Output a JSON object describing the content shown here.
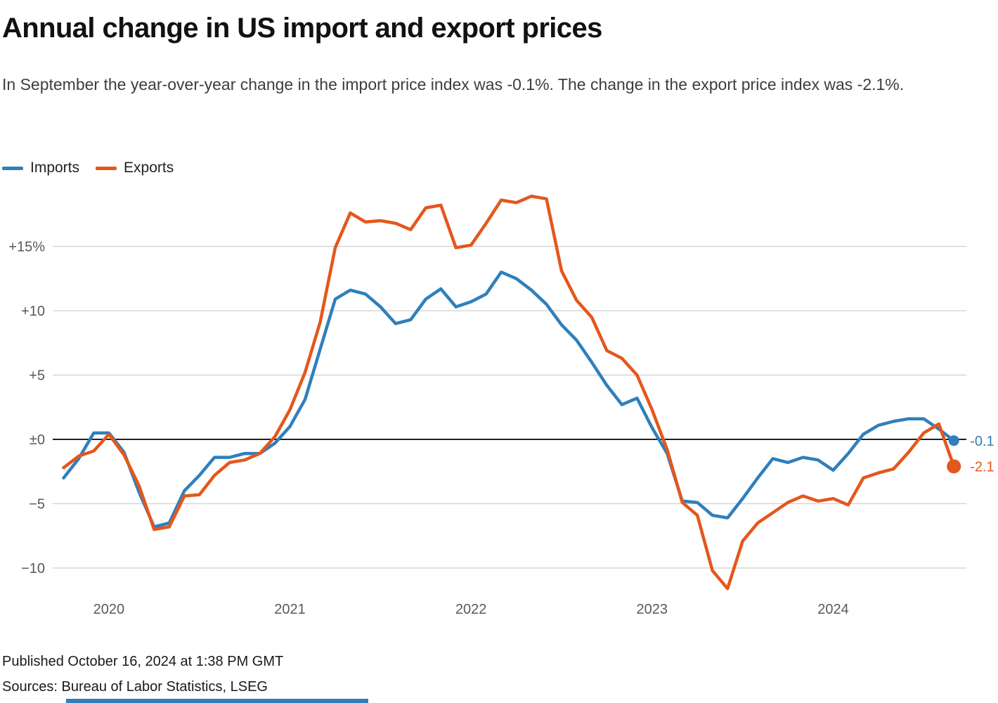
{
  "chart_data": {
    "type": "line",
    "title": "Annual change in US import and export prices",
    "subtitle": "In September the year-over-year change in the import price index was -0.1%. The change in the export price index was -2.1%.",
    "x": [
      "2019-10",
      "2019-11",
      "2019-12",
      "2020-01",
      "2020-02",
      "2020-03",
      "2020-04",
      "2020-05",
      "2020-06",
      "2020-07",
      "2020-08",
      "2020-09",
      "2020-10",
      "2020-11",
      "2020-12",
      "2021-01",
      "2021-02",
      "2021-03",
      "2021-04",
      "2021-05",
      "2021-06",
      "2021-07",
      "2021-08",
      "2021-09",
      "2021-10",
      "2021-11",
      "2021-12",
      "2022-01",
      "2022-02",
      "2022-03",
      "2022-04",
      "2022-05",
      "2022-06",
      "2022-07",
      "2022-08",
      "2022-09",
      "2022-10",
      "2022-11",
      "2022-12",
      "2023-01",
      "2023-02",
      "2023-03",
      "2023-04",
      "2023-05",
      "2023-06",
      "2023-07",
      "2023-08",
      "2023-09",
      "2023-10",
      "2023-11",
      "2023-12",
      "2024-01",
      "2024-02",
      "2024-03",
      "2024-04",
      "2024-05",
      "2024-06",
      "2024-07",
      "2024-08",
      "2024-09"
    ],
    "series": [
      {
        "name": "Imports",
        "color": "#2f7fbc",
        "end_label": "-0.1",
        "values": [
          -3.0,
          -1.5,
          0.5,
          0.5,
          -1.0,
          -4.1,
          -6.8,
          -6.5,
          -4.0,
          -2.8,
          -1.4,
          -1.4,
          -1.1,
          -1.1,
          -0.3,
          1.0,
          3.1,
          7.0,
          10.9,
          11.6,
          11.3,
          10.3,
          9.0,
          9.3,
          10.9,
          11.7,
          10.3,
          10.7,
          11.3,
          13.0,
          12.5,
          11.6,
          10.5,
          8.9,
          7.7,
          6.0,
          4.2,
          2.7,
          3.2,
          0.9,
          -1.1,
          -4.8,
          -4.9,
          -5.9,
          -6.1,
          -4.6,
          -3.0,
          -1.5,
          -1.8,
          -1.4,
          -1.6,
          -2.4,
          -1.1,
          0.4,
          1.1,
          1.4,
          1.6,
          1.6,
          0.8,
          -0.1
        ]
      },
      {
        "name": "Exports",
        "color": "#e4571c",
        "end_label": "-2.1",
        "values": [
          -2.2,
          -1.3,
          -0.9,
          0.4,
          -1.2,
          -3.6,
          -7.0,
          -6.8,
          -4.4,
          -4.3,
          -2.8,
          -1.8,
          -1.6,
          -1.1,
          0.2,
          2.3,
          5.2,
          9.1,
          14.9,
          17.6,
          16.9,
          17.0,
          16.8,
          16.3,
          18.0,
          18.2,
          14.9,
          15.1,
          16.8,
          18.6,
          18.4,
          18.9,
          18.7,
          13.1,
          10.8,
          9.5,
          6.9,
          6.3,
          5.0,
          2.3,
          -0.8,
          -4.9,
          -5.9,
          -10.2,
          -11.6,
          -7.9,
          -6.5,
          -5.7,
          -4.9,
          -4.4,
          -4.8,
          -4.6,
          -5.1,
          -3.0,
          -2.6,
          -2.3,
          -1.0,
          0.5,
          1.2,
          -2.1
        ]
      }
    ],
    "y_ticks": [
      {
        "value": 15,
        "label": "+15%"
      },
      {
        "value": 10,
        "label": "+10"
      },
      {
        "value": 5,
        "label": "+5"
      },
      {
        "value": 0,
        "label": "±0"
      },
      {
        "value": -5,
        "label": "−5"
      },
      {
        "value": -10,
        "label": "−10"
      }
    ],
    "x_ticks": [
      {
        "month": "2020-01",
        "label": "2020"
      },
      {
        "month": "2021-01",
        "label": "2021"
      },
      {
        "month": "2022-01",
        "label": "2022"
      },
      {
        "month": "2023-01",
        "label": "2023"
      },
      {
        "month": "2024-01",
        "label": "2024"
      }
    ],
    "ylim": [
      -13,
      20
    ],
    "x_range": [
      "2019-10",
      "2024-09"
    ],
    "grid": "horizontal",
    "zero_line": true,
    "legend_position": "top-left"
  },
  "footer": {
    "published": "Published October 16, 2024 at 1:38 PM GMT",
    "sources": "Sources: Bureau of Labor Statistics, LSEG"
  },
  "colors": {
    "imports": "#2f7fbc",
    "exports": "#e4571c",
    "grid": "#cfcfcf",
    "zero_line": "#000000",
    "axis_text": "#595959",
    "accent_bar": "#2f7fbc"
  }
}
